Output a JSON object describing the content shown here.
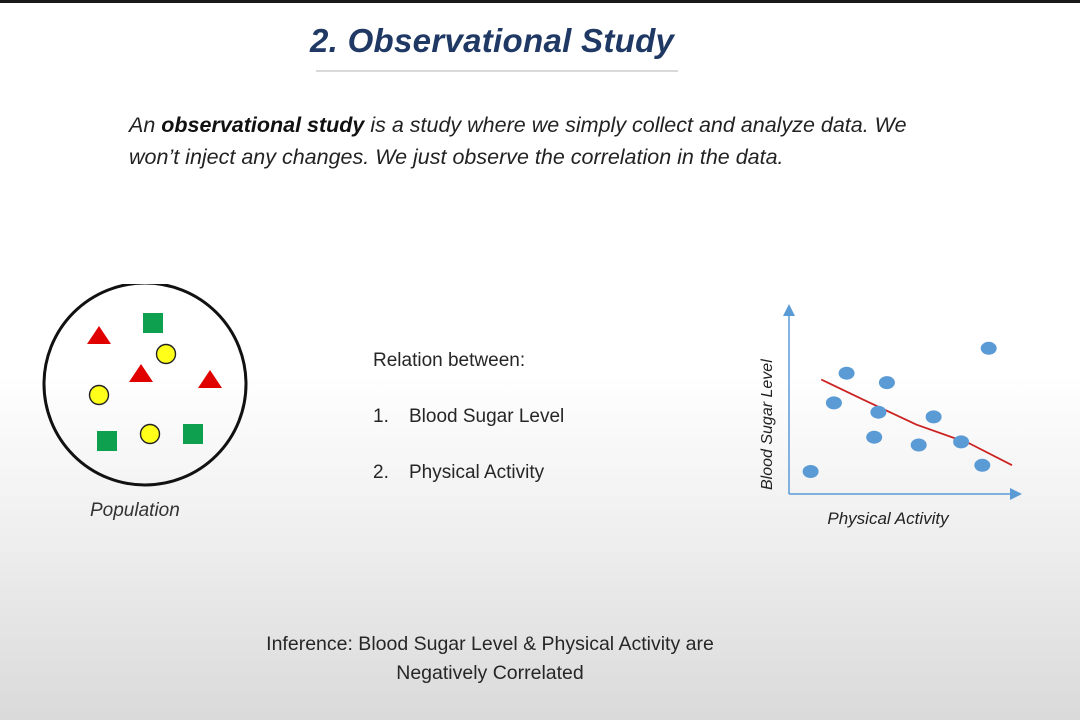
{
  "slide": {
    "title": "2. Observational  Study",
    "intro": {
      "prefix": "An ",
      "term": "observational study",
      "suffix": " is a study where we simply collect and analyze data. We won’t inject any changes. We just observe the correlation in the data."
    },
    "population_label": "Population",
    "relation": {
      "heading": "Relation between:",
      "items": [
        {
          "num": "1.",
          "label": "Blood Sugar Level"
        },
        {
          "num": "2.",
          "label": "Physical Activity"
        }
      ]
    },
    "inference": {
      "line1": "Inference: Blood Sugar Level & Physical Activity are",
      "line2": "Negatively Correlated"
    }
  },
  "colors": {
    "title": "#1f3864",
    "triangle": "#e00000",
    "square": "#0fa04f",
    "circle": "#ffff1a",
    "point": "#5b9bd5",
    "trend": "#cc2222",
    "axis": "#5b9bd5"
  },
  "population_shapes": [
    {
      "kind": "triangle"
    },
    {
      "kind": "square"
    },
    {
      "kind": "circle"
    },
    {
      "kind": "triangle"
    },
    {
      "kind": "triangle"
    },
    {
      "kind": "circle"
    },
    {
      "kind": "square"
    },
    {
      "kind": "circle"
    },
    {
      "kind": "square"
    }
  ],
  "chart_data": {
    "type": "scatter",
    "xlabel": "Physical Activity",
    "ylabel": "Blood Sugar Level",
    "xlim": [
      0,
      10
    ],
    "ylim": [
      0,
      10
    ],
    "points": [
      {
        "x": 0.5,
        "y": 0.8
      },
      {
        "x": 1.6,
        "y": 5.2
      },
      {
        "x": 2.2,
        "y": 7.1
      },
      {
        "x": 3.5,
        "y": 3.0
      },
      {
        "x": 3.7,
        "y": 4.6
      },
      {
        "x": 4.1,
        "y": 6.5
      },
      {
        "x": 5.6,
        "y": 2.5
      },
      {
        "x": 6.3,
        "y": 4.3
      },
      {
        "x": 7.6,
        "y": 2.7
      },
      {
        "x": 8.6,
        "y": 1.2
      },
      {
        "x": 8.9,
        "y": 8.7
      }
    ],
    "trend": [
      {
        "x": 1.0,
        "y": 6.7
      },
      {
        "x": 3.0,
        "y": 5.3
      },
      {
        "x": 5.5,
        "y": 3.9
      },
      {
        "x": 8.0,
        "y": 2.5
      },
      {
        "x": 10.0,
        "y": 1.3
      }
    ],
    "grid": false
  }
}
